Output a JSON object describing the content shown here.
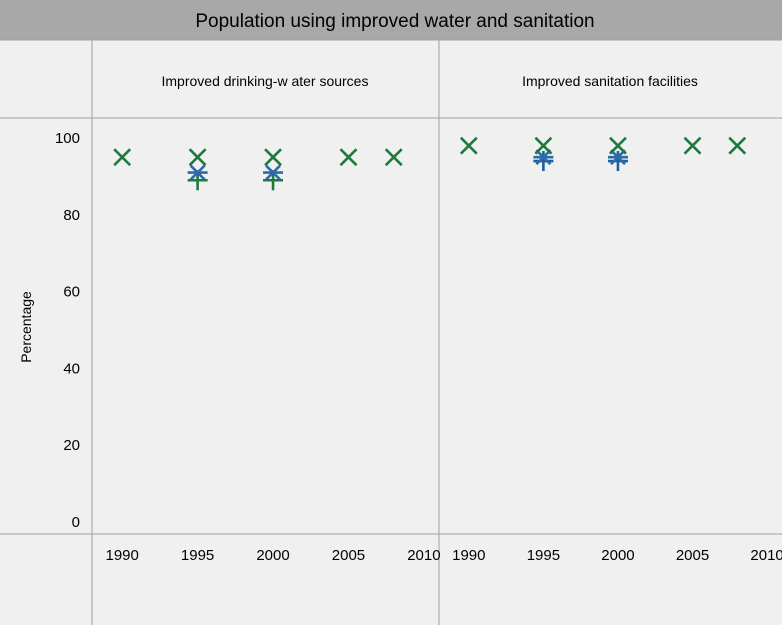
{
  "chart_data": {
    "type": "scatter",
    "title": "Population using improved water and sanitation",
    "ylabel": "Percentage",
    "ylim": [
      0,
      100
    ],
    "yticks": [
      0,
      20,
      40,
      60,
      80,
      100
    ],
    "xlim": [
      1988,
      2011
    ],
    "xticks": [
      1990,
      1995,
      2000,
      2005,
      2010
    ],
    "grid": false,
    "panels": [
      {
        "label": "Improved drinking-w ater sources",
        "series": [
          {
            "marker": "x",
            "color": "#1e7a3c",
            "points": [
              [
                1990,
                95
              ],
              [
                1995,
                95
              ],
              [
                2000,
                95
              ],
              [
                2005,
                95
              ],
              [
                2008,
                95
              ]
            ]
          },
          {
            "marker": "cross-x",
            "color": "#2e6aa8",
            "points": [
              [
                1995,
                91
              ],
              [
                2000,
                91
              ]
            ]
          },
          {
            "marker": "plus",
            "color": "#1e7a3c",
            "points": [
              [
                1995,
                89
              ],
              [
                2000,
                89
              ]
            ]
          }
        ]
      },
      {
        "label": "Improved sanitation facilities",
        "series": [
          {
            "marker": "x",
            "color": "#1e7a3c",
            "points": [
              [
                1990,
                98
              ],
              [
                1995,
                98
              ],
              [
                2000,
                98
              ],
              [
                2005,
                98
              ],
              [
                2008,
                98
              ]
            ]
          },
          {
            "marker": "cross-x",
            "color": "#2e6aa8",
            "points": [
              [
                1995,
                95
              ],
              [
                2000,
                95
              ]
            ]
          },
          {
            "marker": "plus",
            "color": "#1e5f9a",
            "points": [
              [
                1995,
                94
              ],
              [
                2000,
                94
              ]
            ]
          }
        ]
      }
    ]
  },
  "colors": {
    "title_bar": "#a8a8a8",
    "panel_bg": "#f0f0f0",
    "frame": "#a0a0a0"
  }
}
